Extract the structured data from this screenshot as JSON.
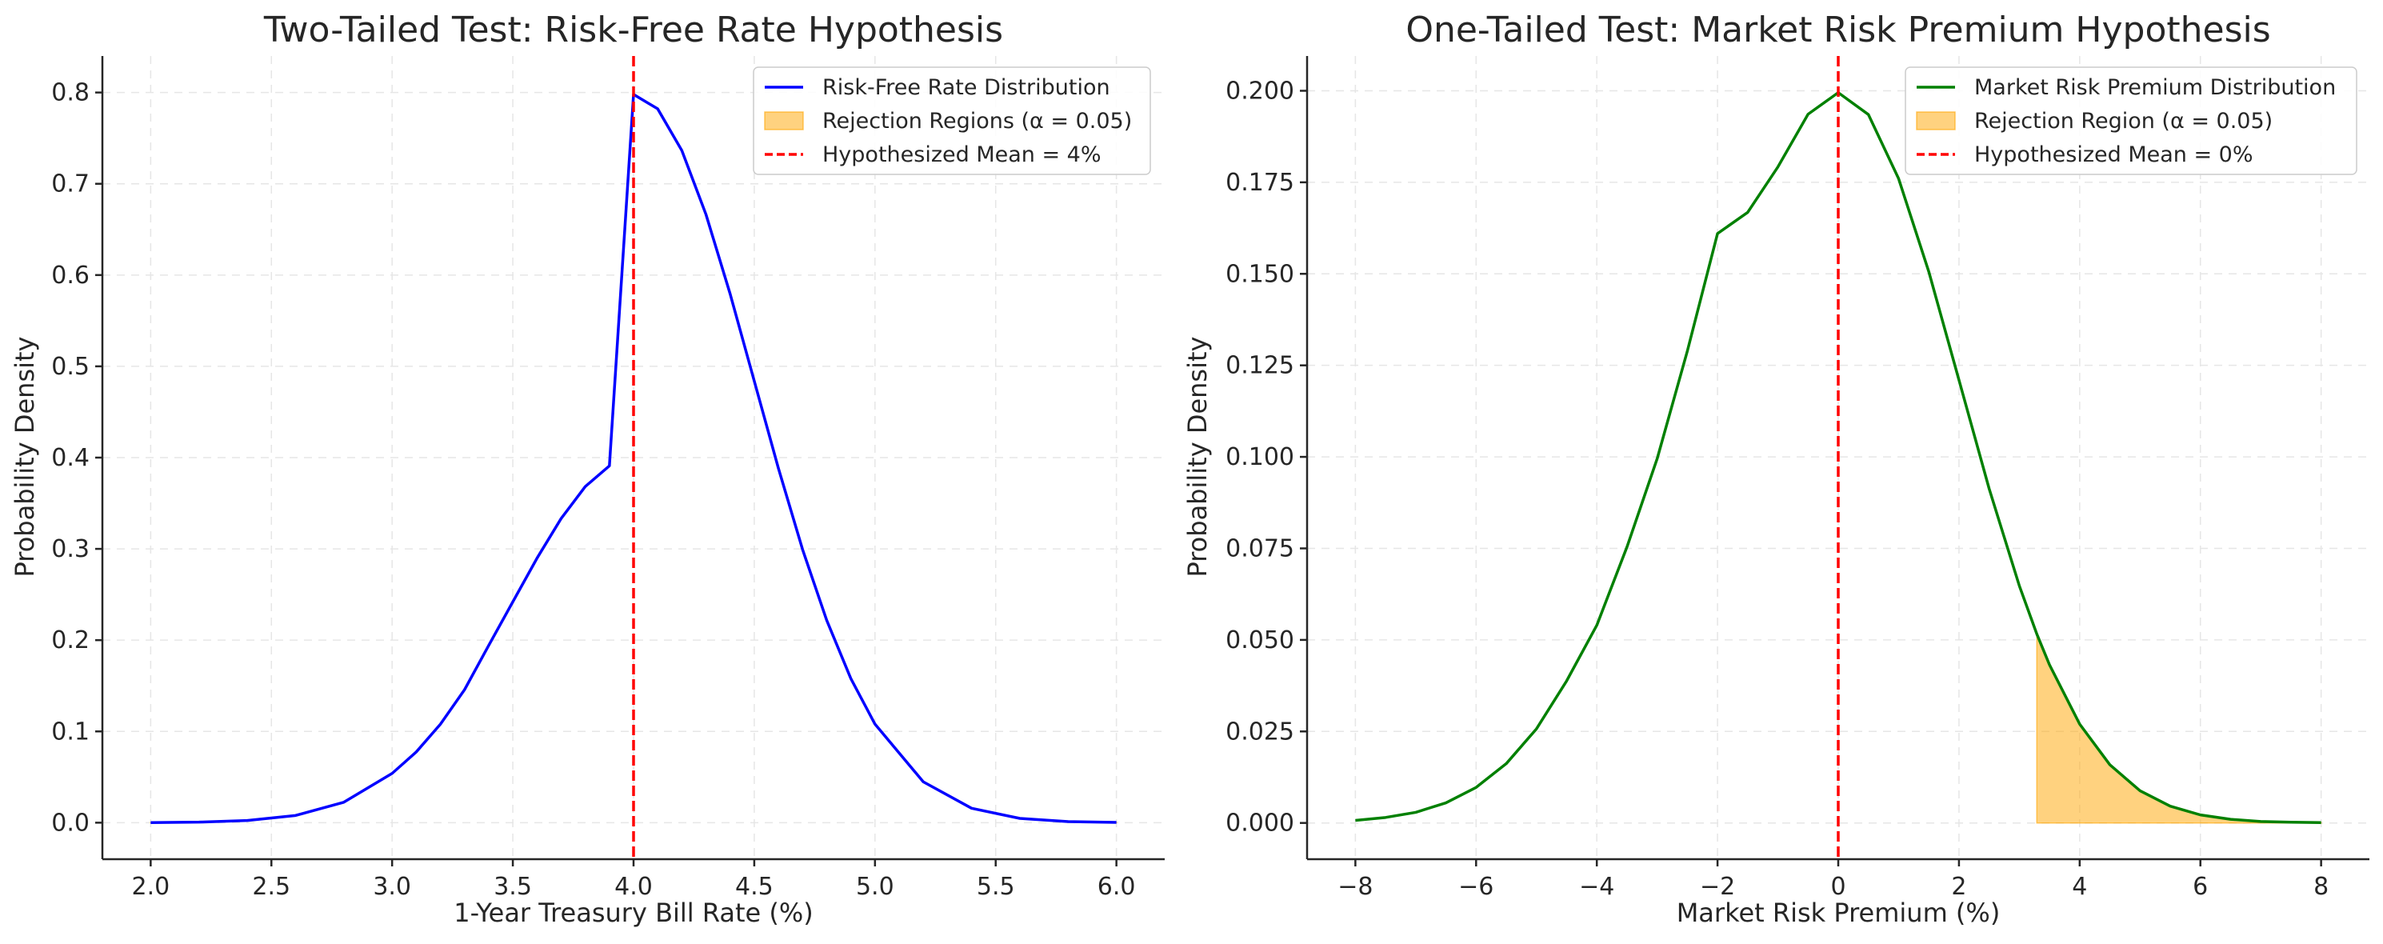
{
  "chart_data": [
    {
      "type": "line",
      "title": "Two-Tailed Test: Risk-Free Rate Hypothesis",
      "xlabel": "1-Year Treasury Bill Rate (%)",
      "ylabel": "Probability Density",
      "xlim": [
        1.8,
        6.2
      ],
      "ylim": [
        -0.04,
        0.84
      ],
      "x_ticks": [
        2.0,
        2.5,
        3.0,
        3.5,
        4.0,
        4.5,
        5.0,
        5.5,
        6.0
      ],
      "x_tick_labels": [
        "2.0",
        "2.5",
        "3.0",
        "3.5",
        "4.0",
        "4.5",
        "5.0",
        "5.5",
        "6.0"
      ],
      "y_ticks": [
        0.0,
        0.1,
        0.2,
        0.3,
        0.4,
        0.5,
        0.6,
        0.7,
        0.8
      ],
      "y_tick_labels": [
        "0.0",
        "0.1",
        "0.2",
        "0.3",
        "0.4",
        "0.5",
        "0.6",
        "0.7",
        "0.8"
      ],
      "grid": true,
      "legend_position": "top-right",
      "series": [
        {
          "name": "Risk-Free Rate Distribution",
          "color": "#0000ff",
          "style": "solid",
          "x": [
            2.0,
            2.2,
            2.4,
            2.6,
            2.8,
            3.0,
            3.1,
            3.2,
            3.3,
            3.4,
            3.5,
            3.6,
            3.7,
            3.8,
            3.9,
            4.0,
            4.1,
            4.2,
            4.3,
            4.4,
            4.5,
            4.6,
            4.7,
            4.8,
            4.9,
            5.0,
            5.2,
            5.4,
            5.6,
            5.8,
            6.0
          ],
          "y": [
            0.0001,
            0.0006,
            0.0024,
            0.0079,
            0.0224,
            0.054,
            0.0775,
            0.1079,
            0.1457,
            0.1942,
            0.242,
            0.2897,
            0.3332,
            0.3683,
            0.391,
            0.7979,
            0.7821,
            0.7365,
            0.6664,
            0.5794,
            0.4839,
            0.3883,
            0.2994,
            0.2218,
            0.1579,
            0.108,
            0.0448,
            0.0158,
            0.0047,
            0.0012,
            0.0003
          ]
        },
        {
          "name": "Hypothesized Mean = 4%",
          "color": "#ff0000",
          "style": "dashed",
          "vline_x": 4.0
        }
      ],
      "shaded_regions": [
        {
          "name": "Rejection Regions (α = 0.05)",
          "color": "#ffa500",
          "opacity": 0.5,
          "ranges": [
            [
              2.0,
              2.04
            ],
            [
              5.96,
              6.0
            ]
          ]
        }
      ]
    },
    {
      "type": "line",
      "title": "One-Tailed Test: Market Risk Premium Hypothesis",
      "xlabel": "Market Risk Premium (%)",
      "ylabel": "Probability Density",
      "xlim": [
        -8.8,
        8.8
      ],
      "ylim": [
        -0.0099,
        0.2095
      ],
      "x_ticks": [
        -8,
        -6,
        -4,
        -2,
        0,
        2,
        4,
        6,
        8
      ],
      "x_tick_labels": [
        "−8",
        "−6",
        "−4",
        "−2",
        "0",
        "2",
        "4",
        "6",
        "8"
      ],
      "y_ticks": [
        0.0,
        0.025,
        0.05,
        0.075,
        0.1,
        0.125,
        0.15,
        0.175,
        0.2
      ],
      "y_tick_labels": [
        "0.000",
        "0.025",
        "0.050",
        "0.075",
        "0.100",
        "0.125",
        "0.150",
        "0.175",
        "0.200"
      ],
      "grid": true,
      "legend_position": "top-right",
      "series": [
        {
          "name": "Market Risk Premium Distribution",
          "color": "#008000",
          "style": "solid",
          "x": [
            -8,
            -7.5,
            -7,
            -6.5,
            -6,
            -5.5,
            -5,
            -4.5,
            -4,
            -3.5,
            -3,
            -2.5,
            -2,
            -1.5,
            -1,
            -0.5,
            0,
            0.5,
            1,
            1.5,
            2,
            2.5,
            3,
            3.29,
            3.5,
            4,
            4.5,
            5,
            5.5,
            6,
            6.5,
            7,
            7.5,
            8
          ],
          "y": [
            0.0007,
            0.0015,
            0.0029,
            0.0055,
            0.0097,
            0.0162,
            0.0257,
            0.0388,
            0.054,
            0.0754,
            0.0995,
            0.1289,
            0.161,
            0.1668,
            0.1792,
            0.1936,
            0.1995,
            0.1935,
            0.176,
            0.1506,
            0.121,
            0.0913,
            0.0648,
            0.0516,
            0.0432,
            0.027,
            0.0159,
            0.0088,
            0.0046,
            0.0022,
            0.001,
            0.0004,
            0.0002,
            0.0001
          ]
        },
        {
          "name": "Hypothesized Mean = 0%",
          "color": "#ff0000",
          "style": "dashed",
          "vline_x": 0
        }
      ],
      "shaded_regions": [
        {
          "name": "Rejection Region (α = 0.05)",
          "color": "#ffa500",
          "opacity": 0.5,
          "ranges": [
            [
              3.29,
              8.0
            ]
          ]
        }
      ]
    }
  ]
}
